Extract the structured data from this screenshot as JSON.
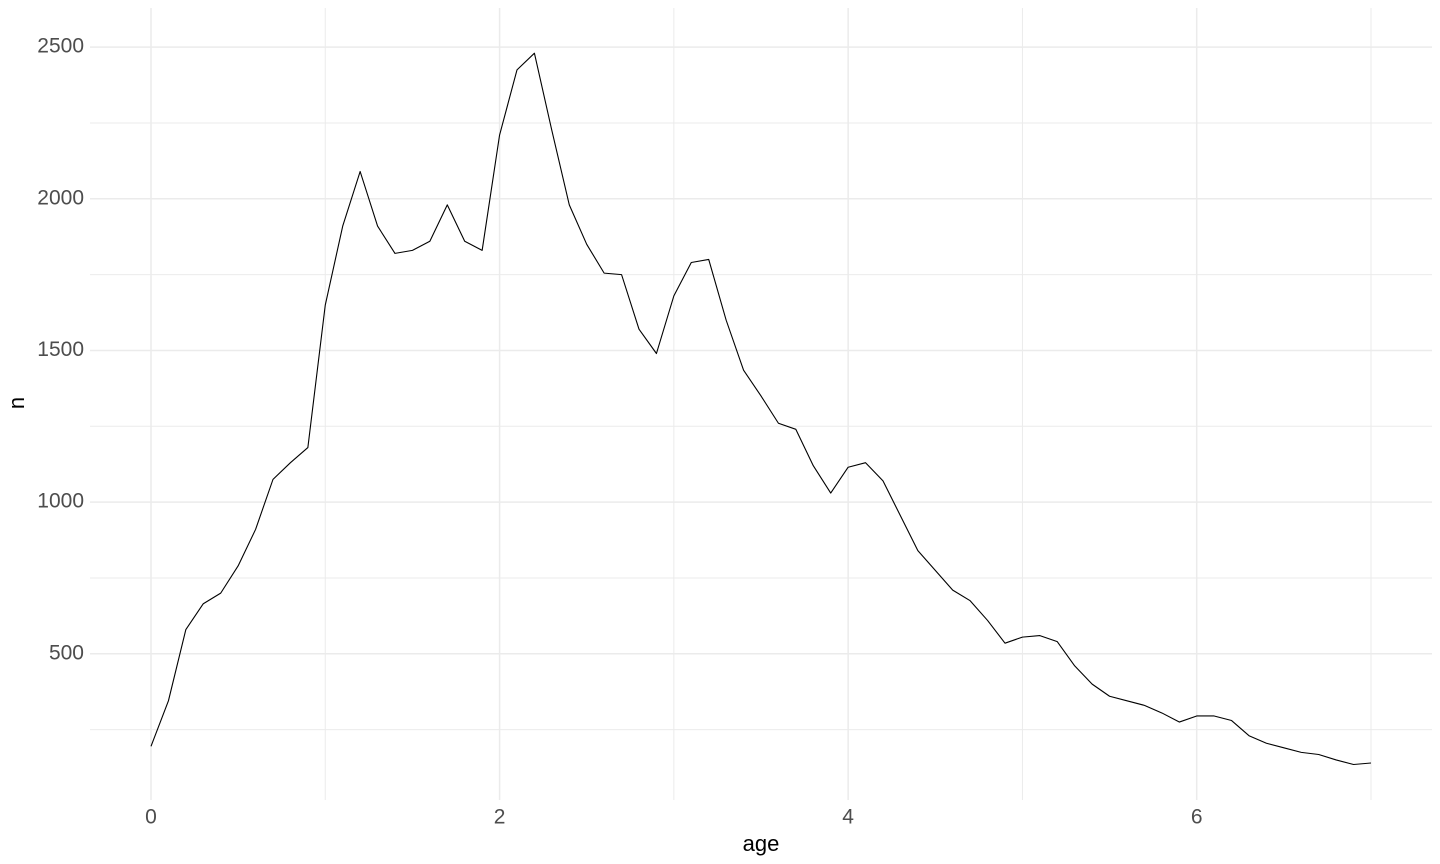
{
  "chart_data": {
    "type": "line",
    "x_label": "age",
    "y_label": "n",
    "x": [
      0,
      0.1,
      0.2,
      0.3,
      0.4,
      0.5,
      0.6,
      0.7,
      0.8,
      0.9,
      1,
      1.1,
      1.2,
      1.3,
      1.4,
      1.5,
      1.6,
      1.7,
      1.8,
      1.9,
      2,
      2.1,
      2.2,
      2.3,
      2.4,
      2.5,
      2.6,
      2.7,
      2.8,
      2.9,
      3,
      3.1,
      3.2,
      3.3,
      3.4,
      3.5,
      3.6,
      3.7,
      3.8,
      3.9,
      4,
      4.1,
      4.2,
      4.3,
      4.4,
      4.5,
      4.6,
      4.7,
      4.8,
      4.9,
      5,
      5.1,
      5.2,
      5.3,
      5.4,
      5.5,
      5.6,
      5.7,
      5.8,
      5.9,
      6,
      6.1,
      6.2,
      6.3,
      6.4,
      6.5,
      6.6,
      6.7,
      6.8,
      6.9,
      7
    ],
    "series": [
      {
        "color": "#000000",
        "values": [
          195,
          345,
          580,
          665,
          700,
          790,
          910,
          1075,
          1130,
          1180,
          1650,
          1910,
          2090,
          1910,
          1820,
          1830,
          1860,
          1980,
          1860,
          1830,
          2210,
          2425,
          2480,
          2225,
          1980,
          1850,
          1755,
          1750,
          1570,
          1490,
          1680,
          1790,
          1800,
          1600,
          1435,
          1350,
          1260,
          1240,
          1120,
          1030,
          1115,
          1130,
          1070,
          955,
          840,
          775,
          710,
          675,
          610,
          535,
          555,
          560,
          540,
          460,
          400,
          360,
          345,
          330,
          305,
          275,
          295,
          295,
          280,
          230,
          205,
          190,
          175,
          168,
          150,
          135,
          140
        ]
      }
    ],
    "xlim": [
      -0.35,
      7.35
    ],
    "ylim": [
      18,
      2629
    ],
    "xticks": [
      0,
      2,
      4,
      6
    ],
    "yticks": [
      500,
      1000,
      1500,
      2000,
      2500
    ],
    "x_minor_grid": [
      1,
      3,
      5,
      7
    ],
    "y_minor_grid": [
      250,
      750,
      1250,
      1750,
      2250
    ],
    "grid": true,
    "grid_color": "#ebebeb"
  }
}
